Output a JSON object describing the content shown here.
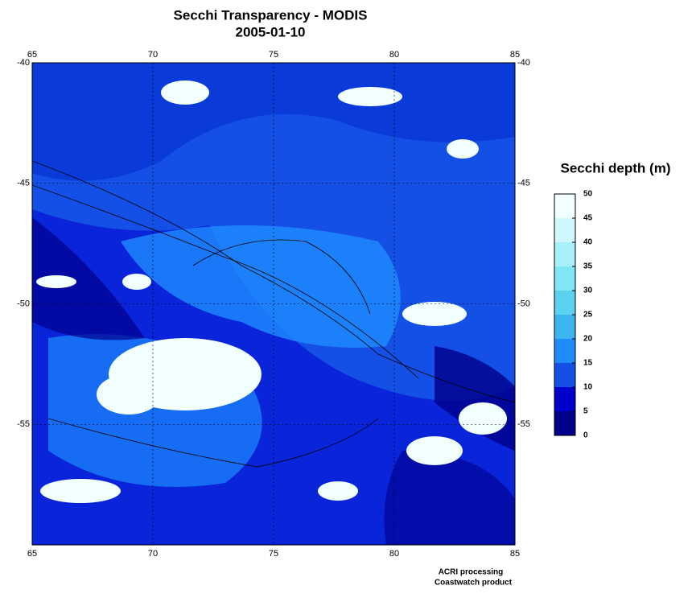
{
  "header": {
    "title": "Secchi Transparency - MODIS",
    "date": "2005-01-10"
  },
  "map": {
    "lonlim": [
      65,
      85
    ],
    "latlim": [
      -40,
      -60
    ],
    "lon_ticks": [
      65,
      70,
      75,
      80,
      85
    ],
    "lat_ticks": [
      -40,
      -45,
      -50,
      -55
    ],
    "grid": true
  },
  "colorbar": {
    "label": "Secchi depth (m)",
    "range": [
      0,
      50
    ],
    "ticks": [
      0,
      5,
      10,
      15,
      20,
      25,
      30,
      35,
      40,
      45,
      50
    ],
    "colors": [
      "#00008b",
      "#0000cd",
      "#1450e6",
      "#1e8cff",
      "#3cb4f0",
      "#5ad2f0",
      "#80e6f5",
      "#a8f0fa",
      "#d0f8fc",
      "#f2ffff"
    ]
  },
  "footer": {
    "line1": "ACRI processing",
    "line2": "Coastwatch product"
  }
}
